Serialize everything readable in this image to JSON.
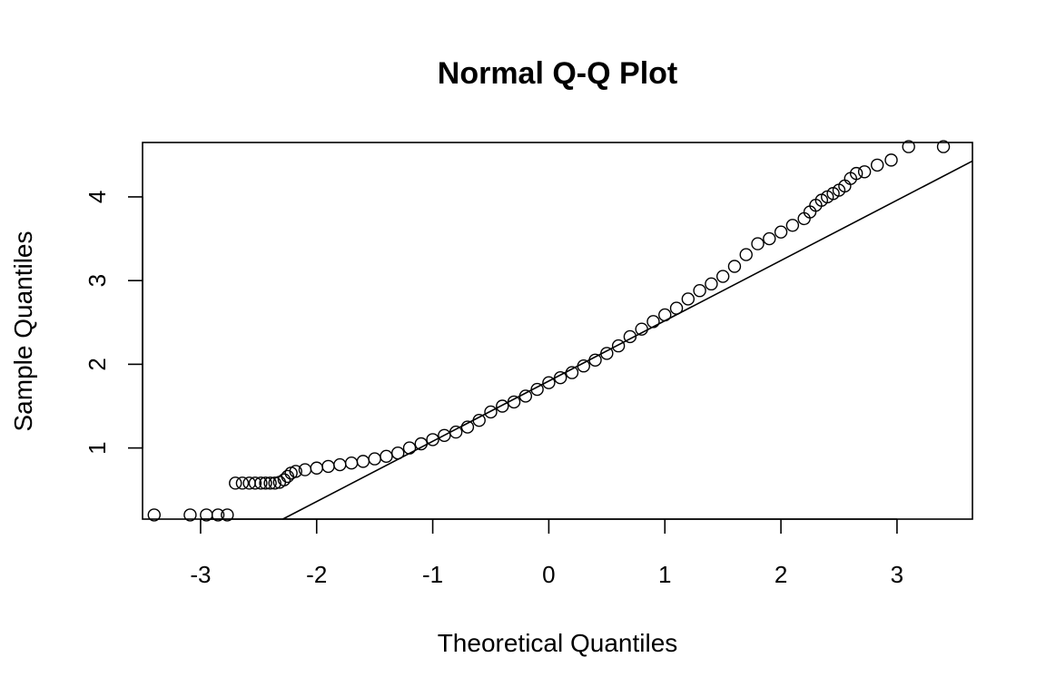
{
  "chart_data": {
    "type": "scatter",
    "title": "Normal Q-Q Plot",
    "xlabel": "Theoretical Quantiles",
    "ylabel": "Sample Quantiles",
    "xlim": [
      -3.5,
      3.65
    ],
    "ylim": [
      0.15,
      4.65
    ],
    "xticks": [
      -3,
      -2,
      -1,
      0,
      1,
      2,
      3
    ],
    "yticks": [
      1,
      2,
      3,
      4
    ],
    "grid": false,
    "reference_line": {
      "intercept": 1.8,
      "slope": 0.72
    },
    "points": [
      [
        -3.4,
        0.2
      ],
      [
        -3.09,
        0.2
      ],
      [
        -2.95,
        0.2
      ],
      [
        -2.85,
        0.2
      ],
      [
        -2.77,
        0.2
      ],
      [
        -2.7,
        0.58
      ],
      [
        -2.64,
        0.58
      ],
      [
        -2.58,
        0.58
      ],
      [
        -2.53,
        0.58
      ],
      [
        -2.48,
        0.58
      ],
      [
        -2.44,
        0.58
      ],
      [
        -2.4,
        0.58
      ],
      [
        -2.36,
        0.58
      ],
      [
        -2.32,
        0.59
      ],
      [
        -2.28,
        0.62
      ],
      [
        -2.25,
        0.66
      ],
      [
        -2.22,
        0.7
      ],
      [
        -2.18,
        0.72
      ],
      [
        -2.1,
        0.74
      ],
      [
        -2.0,
        0.76
      ],
      [
        -1.9,
        0.78
      ],
      [
        -1.8,
        0.8
      ],
      [
        -1.7,
        0.82
      ],
      [
        -1.6,
        0.84
      ],
      [
        -1.5,
        0.87
      ],
      [
        -1.4,
        0.9
      ],
      [
        -1.3,
        0.94
      ],
      [
        -1.2,
        1.0
      ],
      [
        -1.1,
        1.05
      ],
      [
        -1.0,
        1.1
      ],
      [
        -0.9,
        1.15
      ],
      [
        -0.8,
        1.19
      ],
      [
        -0.7,
        1.25
      ],
      [
        -0.6,
        1.33
      ],
      [
        -0.5,
        1.43
      ],
      [
        -0.4,
        1.5
      ],
      [
        -0.3,
        1.55
      ],
      [
        -0.2,
        1.62
      ],
      [
        -0.1,
        1.7
      ],
      [
        0.0,
        1.78
      ],
      [
        0.1,
        1.84
      ],
      [
        0.2,
        1.9
      ],
      [
        0.3,
        1.98
      ],
      [
        0.4,
        2.05
      ],
      [
        0.5,
        2.13
      ],
      [
        0.6,
        2.22
      ],
      [
        0.7,
        2.33
      ],
      [
        0.8,
        2.42
      ],
      [
        0.9,
        2.51
      ],
      [
        1.0,
        2.59
      ],
      [
        1.1,
        2.67
      ],
      [
        1.2,
        2.78
      ],
      [
        1.3,
        2.88
      ],
      [
        1.4,
        2.96
      ],
      [
        1.5,
        3.05
      ],
      [
        1.6,
        3.17
      ],
      [
        1.7,
        3.31
      ],
      [
        1.8,
        3.44
      ],
      [
        1.9,
        3.5
      ],
      [
        2.0,
        3.58
      ],
      [
        2.1,
        3.66
      ],
      [
        2.2,
        3.74
      ],
      [
        2.25,
        3.82
      ],
      [
        2.3,
        3.9
      ],
      [
        2.35,
        3.96
      ],
      [
        2.4,
        4.0
      ],
      [
        2.45,
        4.04
      ],
      [
        2.5,
        4.08
      ],
      [
        2.55,
        4.13
      ],
      [
        2.6,
        4.22
      ],
      [
        2.65,
        4.28
      ],
      [
        2.72,
        4.3
      ],
      [
        2.83,
        4.38
      ],
      [
        2.95,
        4.44
      ],
      [
        3.1,
        4.6
      ],
      [
        3.4,
        4.6
      ]
    ]
  }
}
